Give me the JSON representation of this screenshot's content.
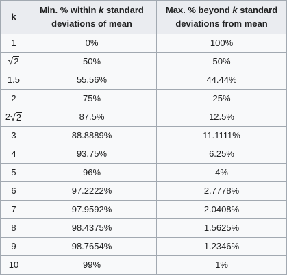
{
  "table": {
    "headers": [
      {
        "text": "k"
      },
      {
        "parts": [
          "Min. % within ",
          "k",
          " standard deviations of mean"
        ]
      },
      {
        "parts": [
          "Max. % beyond ",
          "k",
          " standard deviations from mean"
        ]
      }
    ],
    "rows": [
      {
        "k": "1",
        "min": "0%",
        "max": "100%"
      },
      {
        "k_radicand": "2",
        "min": "50%",
        "max": "50%"
      },
      {
        "k": "1.5",
        "min": "55.56%",
        "max": "44.44%"
      },
      {
        "k": "2",
        "min": "75%",
        "max": "25%"
      },
      {
        "k_coef": "2",
        "k_radicand": "2",
        "min": "87.5%",
        "max": "12.5%"
      },
      {
        "k": "3",
        "min": "88.8889%",
        "max": "11.1111%"
      },
      {
        "k": "4",
        "min": "93.75%",
        "max": "6.25%"
      },
      {
        "k": "5",
        "min": "96%",
        "max": "4%"
      },
      {
        "k": "6",
        "min": "97.2222%",
        "max": "2.7778%"
      },
      {
        "k": "7",
        "min": "97.9592%",
        "max": "2.0408%"
      },
      {
        "k": "8",
        "min": "98.4375%",
        "max": "1.5625%"
      },
      {
        "k": "9",
        "min": "98.7654%",
        "max": "1.2346%"
      },
      {
        "k": "10",
        "min": "99%",
        "max": "1%"
      }
    ]
  }
}
